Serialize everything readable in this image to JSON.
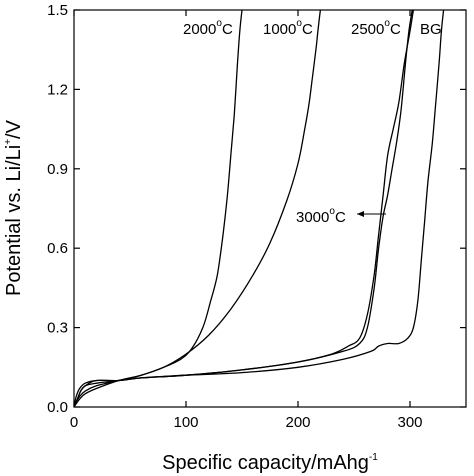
{
  "chart_data": {
    "type": "line",
    "xlabel": "Specific capacity/mAhg",
    "xlabel_sup": "-1",
    "ylabel": "Potential vs. Li/Li",
    "ylabel_sup": "+",
    "ylabel_suffix": "/V",
    "xlim": [
      0,
      350
    ],
    "ylim": [
      0,
      1.5
    ],
    "x_ticks": [
      0,
      100,
      200,
      300
    ],
    "x_tick_labels": [
      "0",
      "100",
      "200",
      "300"
    ],
    "y_ticks": [
      0,
      0.3,
      0.6,
      0.9,
      1.2,
      1.5
    ],
    "y_tick_labels": [
      "0.0",
      "0.3",
      "0.6",
      "0.9",
      "1.2",
      "1.5"
    ],
    "grid": false,
    "legend": "inline labels",
    "series": [
      {
        "name": "2000°C",
        "x": [
          0,
          2,
          5,
          10,
          20,
          40,
          60,
          80,
          95,
          105,
          115,
          122,
          128,
          133,
          137,
          140,
          143,
          146,
          148,
          150
        ],
        "y": [
          0.0,
          0.02,
          0.04,
          0.06,
          0.08,
          0.1,
          0.12,
          0.15,
          0.18,
          0.22,
          0.3,
          0.4,
          0.5,
          0.65,
          0.8,
          0.95,
          1.1,
          1.3,
          1.42,
          1.5
        ]
      },
      {
        "name": "1000°C",
        "x": [
          0,
          5,
          10,
          20,
          40,
          60,
          80,
          100,
          120,
          140,
          160,
          175,
          190,
          200,
          206,
          210,
          213,
          216,
          218,
          220
        ],
        "y": [
          0.0,
          0.03,
          0.05,
          0.07,
          0.1,
          0.12,
          0.15,
          0.2,
          0.27,
          0.37,
          0.5,
          0.62,
          0.78,
          0.92,
          1.05,
          1.15,
          1.25,
          1.35,
          1.43,
          1.5
        ]
      },
      {
        "name": "2500°C",
        "x": [
          0,
          3,
          6,
          10,
          20,
          40,
          60,
          100,
          150,
          200,
          230,
          245,
          255,
          262,
          268,
          272,
          276,
          280,
          285,
          290,
          295,
          300,
          303
        ],
        "y": [
          0.0,
          0.03,
          0.06,
          0.08,
          0.1,
          0.1,
          0.11,
          0.12,
          0.14,
          0.17,
          0.2,
          0.23,
          0.26,
          0.35,
          0.5,
          0.65,
          0.8,
          0.95,
          1.05,
          1.15,
          1.3,
          1.42,
          1.5
        ]
      },
      {
        "name": "3000°C",
        "x": [
          0,
          3,
          6,
          10,
          20,
          40,
          60,
          100,
          150,
          200,
          240,
          255,
          262,
          268,
          272,
          276,
          280,
          284,
          288,
          292,
          296,
          299,
          302
        ],
        "y": [
          0.0,
          0.03,
          0.06,
          0.08,
          0.09,
          0.1,
          0.11,
          0.12,
          0.14,
          0.17,
          0.21,
          0.24,
          0.3,
          0.45,
          0.6,
          0.72,
          0.8,
          0.9,
          1.0,
          1.12,
          1.3,
          1.42,
          1.5
        ]
      },
      {
        "name": "BG",
        "x": [
          0,
          2,
          5,
          10,
          20,
          40,
          60,
          100,
          150,
          200,
          240,
          265,
          272,
          280,
          290,
          298,
          303,
          307,
          310,
          313,
          316,
          320,
          323,
          326,
          328,
          330
        ],
        "y": [
          0.0,
          0.04,
          0.07,
          0.09,
          0.1,
          0.1,
          0.11,
          0.12,
          0.13,
          0.15,
          0.18,
          0.21,
          0.23,
          0.24,
          0.24,
          0.26,
          0.3,
          0.4,
          0.55,
          0.7,
          0.85,
          1.0,
          1.15,
          1.3,
          1.42,
          1.5
        ]
      }
    ],
    "annotations": [
      {
        "text": "2000",
        "sup": "o",
        "suffix": "C"
      },
      {
        "text": "1000",
        "sup": "o",
        "suffix": "C"
      },
      {
        "text": "2500",
        "sup": "o",
        "suffix": "C"
      },
      {
        "text": "BG",
        "sup": "",
        "suffix": ""
      },
      {
        "text": "3000",
        "sup": "o",
        "suffix": "C"
      }
    ]
  }
}
